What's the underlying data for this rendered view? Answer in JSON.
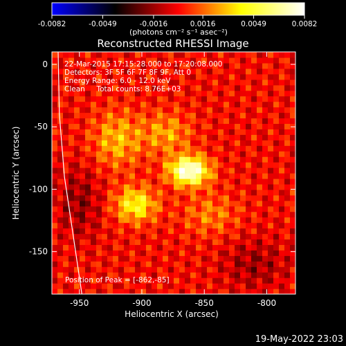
{
  "chart_data": {
    "type": "heatmap",
    "title": "Reconstructed RHESSI Image",
    "xlabel": "Heliocentric X (arcsec)",
    "ylabel": "Heliocentric Y (arcsec)",
    "xlim": [
      -972,
      -777
    ],
    "ylim": [
      -184,
      10
    ],
    "xticks": [
      -950,
      -900,
      -850,
      -800
    ],
    "xtick_labels": [
      "-950",
      "-900",
      "-850",
      "-800"
    ],
    "yticks": [
      0,
      -50,
      -100,
      -150
    ],
    "ytick_labels": [
      "0",
      "-50",
      "-100",
      "-150"
    ],
    "colorbar": {
      "range": [
        -0.0082,
        0.0082
      ],
      "ticks": [
        -0.0082,
        -0.0049,
        -0.0016,
        0.0016,
        0.0049,
        0.0082
      ],
      "tick_labels": [
        "-0.0082",
        "-0.0049",
        "-0.0016",
        "0.0016",
        "0.0049",
        "0.0082"
      ],
      "unit_label": "(photons cm⁻² s⁻¹ asec⁻²)",
      "colors": [
        "#0000ff",
        "#000000",
        "#ff0000",
        "#ffff00",
        "#ffffff"
      ]
    },
    "annotations": [
      "22-Mar-2015 17:15:28.000 to 17:20:08.000",
      "Detectors: 3F 5F 6F 7F 8F 9F, Att 0",
      "Energy Range: 6.0 - 12.0 keV",
      "Clean     Total counts: 8.76E+03"
    ],
    "peak_label": "Position of Peak = [-862,-85]",
    "peak": {
      "x": -862,
      "y": -85
    },
    "sources": [
      {
        "x": -862,
        "y": -85,
        "peak": 0.0082,
        "sigma_x": 11,
        "sigma_y": 8
      },
      {
        "x": -905,
        "y": -112,
        "peak": 0.0045,
        "sigma_x": 12,
        "sigma_y": 10
      },
      {
        "x": -920,
        "y": -60,
        "peak": 0.003,
        "sigma_x": 14,
        "sigma_y": 16
      },
      {
        "x": -880,
        "y": -55,
        "peak": 0.0026,
        "sigma_x": 14,
        "sigma_y": 12
      },
      {
        "x": -845,
        "y": -120,
        "peak": 0.002,
        "sigma_x": 16,
        "sigma_y": 12
      },
      {
        "x": -950,
        "y": -110,
        "peak": -0.0018,
        "sigma_x": 12,
        "sigma_y": 20
      },
      {
        "x": -810,
        "y": -160,
        "peak": -0.0016,
        "sigma_x": 18,
        "sigma_y": 14
      }
    ],
    "limb_curve": [
      {
        "x": -967,
        "y": 10
      },
      {
        "x": -966,
        "y": -40
      },
      {
        "x": -962,
        "y": -90
      },
      {
        "x": -956,
        "y": -130
      },
      {
        "x": -948,
        "y": -184
      }
    ],
    "grid": false
  },
  "footer": {
    "timestamp": "19-May-2022 23:03"
  }
}
